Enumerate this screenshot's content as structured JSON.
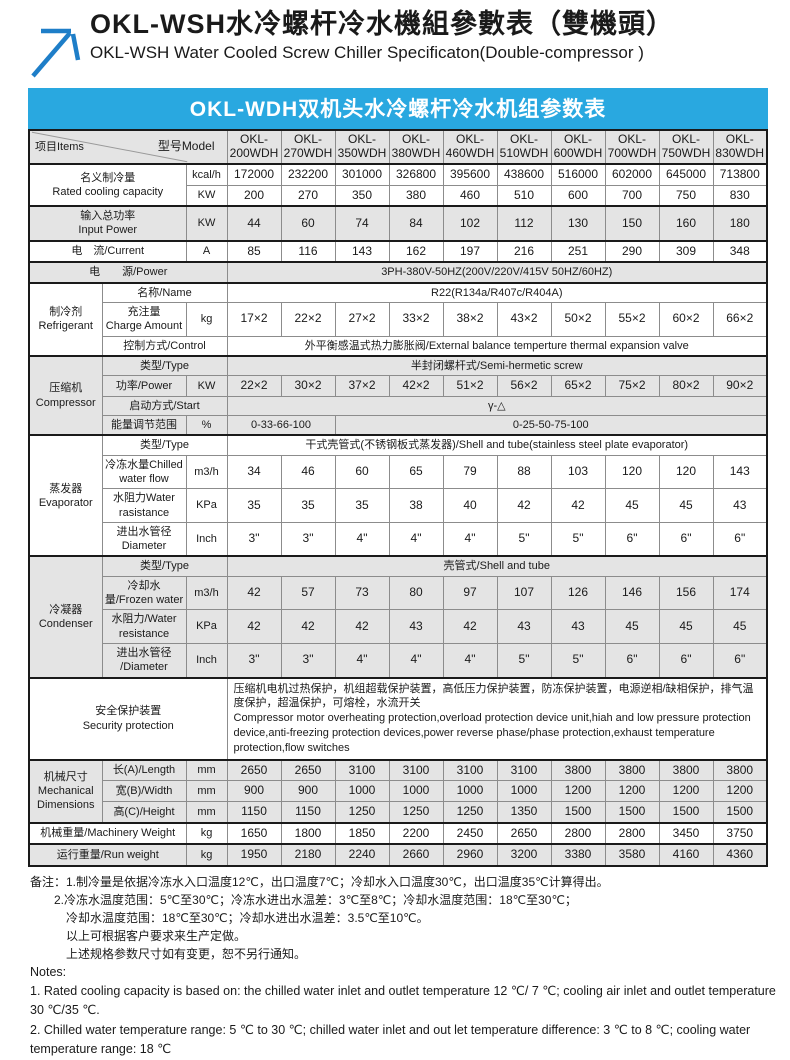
{
  "page_title": {
    "zh": "OKL-WSH水冷螺杆冷水機組參數表（雙機頭）",
    "en": "OKL-WSH Water Cooled Screw Chiller Specificaton(Double-compressor )"
  },
  "banner": {
    "title": "OKL-WDH双机头水冷螺杆冷水机组参数表"
  },
  "colors": {
    "banner_blue": "#29a8e0",
    "row_gray": "#e4e4e4",
    "arrow_blue": "#1e7ec8",
    "border_dark": "#1a1a1a"
  },
  "table": {
    "corner": {
      "items_label": "项目Items",
      "model_label": "型号Model"
    },
    "models": [
      "OKL-\n200WDH",
      "OKL-\n270WDH",
      "OKL-\n350WDH",
      "OKL-\n380WDH",
      "OKL-\n460WDH",
      "OKL-\n510WDH",
      "OKL-\n600WDH",
      "OKL-\n700WDH",
      "OKL-\n750WDH",
      "OKL-\n830WDH"
    ],
    "rows": [
      {
        "shade": false,
        "heavy": true,
        "cells": [
          {
            "t": "名义制冷量\nRated cooling capacity",
            "c": 2,
            "r": 2,
            "k": "label"
          },
          {
            "t": "kcal/h",
            "k": "unit"
          },
          {
            "t": "172000"
          },
          {
            "t": "232200"
          },
          {
            "t": "301000"
          },
          {
            "t": "326800"
          },
          {
            "t": "395600"
          },
          {
            "t": "438600"
          },
          {
            "t": "516000"
          },
          {
            "t": "602000"
          },
          {
            "t": "645000"
          },
          {
            "t": "713800"
          }
        ]
      },
      {
        "shade": false,
        "cells": [
          {
            "t": "KW",
            "k": "unit"
          },
          {
            "t": "200"
          },
          {
            "t": "270"
          },
          {
            "t": "350"
          },
          {
            "t": "380"
          },
          {
            "t": "460"
          },
          {
            "t": "510"
          },
          {
            "t": "600"
          },
          {
            "t": "700"
          },
          {
            "t": "750"
          },
          {
            "t": "830"
          }
        ]
      },
      {
        "shade": true,
        "heavy": true,
        "cells": [
          {
            "t": "输入总功率\nInput Power",
            "c": 2,
            "k": "label"
          },
          {
            "t": "KW",
            "k": "unit"
          },
          {
            "t": "44"
          },
          {
            "t": "60"
          },
          {
            "t": "74"
          },
          {
            "t": "84"
          },
          {
            "t": "102"
          },
          {
            "t": "112"
          },
          {
            "t": "130"
          },
          {
            "t": "150"
          },
          {
            "t": "160"
          },
          {
            "t": "180"
          }
        ]
      },
      {
        "shade": false,
        "heavy": true,
        "cells": [
          {
            "t": "电　流/Current",
            "c": 2,
            "k": "label"
          },
          {
            "t": "A",
            "k": "unit"
          },
          {
            "t": "85"
          },
          {
            "t": "116"
          },
          {
            "t": "143"
          },
          {
            "t": "162"
          },
          {
            "t": "197"
          },
          {
            "t": "216"
          },
          {
            "t": "251"
          },
          {
            "t": "290"
          },
          {
            "t": "309"
          },
          {
            "t": "348"
          }
        ]
      },
      {
        "shade": true,
        "heavy": true,
        "cells": [
          {
            "t": "电　　源/Power",
            "c": 3,
            "k": "label"
          },
          {
            "t": "3PH-380V-50HZ(200V/220V/415V 50HZ/60HZ)",
            "c": 10,
            "k": "span"
          }
        ]
      },
      {
        "shade": false,
        "heavy": true,
        "cells": [
          {
            "t": "制冷剂\nRefrigerant",
            "r": 3,
            "k": "group"
          },
          {
            "t": "名称/Name",
            "c": 2,
            "k": "label"
          },
          {
            "t": "R22(R134a/R407c/R404A)",
            "c": 10,
            "k": "span"
          }
        ]
      },
      {
        "shade": false,
        "cells": [
          {
            "t": "充注量\nCharge Amount",
            "k": "label"
          },
          {
            "t": "kg",
            "k": "unit"
          },
          {
            "t": "17×2"
          },
          {
            "t": "22×2"
          },
          {
            "t": "27×2"
          },
          {
            "t": "33×2"
          },
          {
            "t": "38×2"
          },
          {
            "t": "43×2"
          },
          {
            "t": "50×2"
          },
          {
            "t": "55×2"
          },
          {
            "t": "60×2"
          },
          {
            "t": "66×2"
          }
        ]
      },
      {
        "shade": false,
        "cells": [
          {
            "t": "控制方式/Control",
            "c": 2,
            "k": "label"
          },
          {
            "t": "外平衡感温式热力膨胀阀/External balance temperture thermal expansion valve",
            "c": 10,
            "k": "span"
          }
        ]
      },
      {
        "shade": true,
        "heavy": true,
        "cells": [
          {
            "t": "压缩机\nCompressor",
            "r": 4,
            "k": "group"
          },
          {
            "t": "类型/Type",
            "c": 2,
            "k": "label"
          },
          {
            "t": "半封闭螺杆式/Semi-hermetic screw",
            "c": 10,
            "k": "span"
          }
        ]
      },
      {
        "shade": true,
        "cells": [
          {
            "t": "功率/Power",
            "k": "label"
          },
          {
            "t": "KW",
            "k": "unit"
          },
          {
            "t": "22×2"
          },
          {
            "t": "30×2"
          },
          {
            "t": "37×2"
          },
          {
            "t": "42×2"
          },
          {
            "t": "51×2"
          },
          {
            "t": "56×2"
          },
          {
            "t": "65×2"
          },
          {
            "t": "75×2"
          },
          {
            "t": "80×2"
          },
          {
            "t": "90×2"
          }
        ]
      },
      {
        "shade": true,
        "cells": [
          {
            "t": "启动方式/Start",
            "c": 2,
            "k": "label"
          },
          {
            "t": "γ-△",
            "c": 10,
            "k": "span"
          }
        ]
      },
      {
        "shade": true,
        "cells": [
          {
            "t": "能量调节范围",
            "k": "label"
          },
          {
            "t": "%",
            "k": "unit"
          },
          {
            "t": "0-33-66-100",
            "c": 2,
            "k": "span"
          },
          {
            "t": "0-25-50-75-100",
            "c": 8,
            "k": "span"
          }
        ]
      },
      {
        "shade": false,
        "heavy": true,
        "cells": [
          {
            "t": "蒸发器\nEvaporator",
            "r": 4,
            "k": "group"
          },
          {
            "t": "类型/Type",
            "c": 2,
            "k": "label"
          },
          {
            "t": "干式壳管式(不锈钢板式蒸发器)/Shell and tube(stainless steel plate evaporator)",
            "c": 10,
            "k": "span"
          }
        ]
      },
      {
        "shade": false,
        "cells": [
          {
            "t": "冷冻水量Chilled water flow",
            "k": "label"
          },
          {
            "t": "m3/h",
            "k": "unit"
          },
          {
            "t": "34"
          },
          {
            "t": "46"
          },
          {
            "t": "60"
          },
          {
            "t": "65"
          },
          {
            "t": "79"
          },
          {
            "t": "88"
          },
          {
            "t": "103"
          },
          {
            "t": "120"
          },
          {
            "t": "120"
          },
          {
            "t": "143"
          }
        ]
      },
      {
        "shade": false,
        "cells": [
          {
            "t": "水阻力Water rasistance",
            "k": "label"
          },
          {
            "t": "KPa",
            "k": "unit"
          },
          {
            "t": "35"
          },
          {
            "t": "35"
          },
          {
            "t": "35"
          },
          {
            "t": "38"
          },
          {
            "t": "40"
          },
          {
            "t": "42"
          },
          {
            "t": "42"
          },
          {
            "t": "45"
          },
          {
            "t": "45"
          },
          {
            "t": "43"
          }
        ]
      },
      {
        "shade": false,
        "cells": [
          {
            "t": "进出水管径\nDiameter",
            "k": "label"
          },
          {
            "t": "Inch",
            "k": "unit"
          },
          {
            "t": "3\""
          },
          {
            "t": "3\""
          },
          {
            "t": "4\""
          },
          {
            "t": "4\""
          },
          {
            "t": "4\""
          },
          {
            "t": "5\""
          },
          {
            "t": "5\""
          },
          {
            "t": "6\""
          },
          {
            "t": "6\""
          },
          {
            "t": "6\""
          }
        ]
      },
      {
        "shade": true,
        "heavy": true,
        "cells": [
          {
            "t": "冷凝器\nCondenser",
            "r": 4,
            "k": "group"
          },
          {
            "t": "类型/Type",
            "c": 2,
            "k": "label"
          },
          {
            "t": "壳管式/Shell and tube",
            "c": 10,
            "k": "span"
          }
        ]
      },
      {
        "shade": true,
        "cells": [
          {
            "t": "冷却水量/Frozen water",
            "k": "label"
          },
          {
            "t": "m3/h",
            "k": "unit"
          },
          {
            "t": "42"
          },
          {
            "t": "57"
          },
          {
            "t": "73"
          },
          {
            "t": "80"
          },
          {
            "t": "97"
          },
          {
            "t": "107"
          },
          {
            "t": "126"
          },
          {
            "t": "146"
          },
          {
            "t": "156"
          },
          {
            "t": "174"
          }
        ]
      },
      {
        "shade": true,
        "cells": [
          {
            "t": "水阻力/Water resistance",
            "k": "label"
          },
          {
            "t": "KPa",
            "k": "unit"
          },
          {
            "t": "42"
          },
          {
            "t": "42"
          },
          {
            "t": "42"
          },
          {
            "t": "43"
          },
          {
            "t": "42"
          },
          {
            "t": "43"
          },
          {
            "t": "43"
          },
          {
            "t": "45"
          },
          {
            "t": "45"
          },
          {
            "t": "45"
          }
        ]
      },
      {
        "shade": true,
        "cells": [
          {
            "t": "进出水管径\n/Diameter",
            "k": "label"
          },
          {
            "t": "Inch",
            "k": "unit"
          },
          {
            "t": "3\""
          },
          {
            "t": "3\""
          },
          {
            "t": "4\""
          },
          {
            "t": "4\""
          },
          {
            "t": "4\""
          },
          {
            "t": "5\""
          },
          {
            "t": "5\""
          },
          {
            "t": "6\""
          },
          {
            "t": "6\""
          },
          {
            "t": "6\""
          }
        ]
      },
      {
        "shade": false,
        "heavy": true,
        "cells": [
          {
            "t": "安全保护装置\nSecurity protection",
            "c": 3,
            "k": "label"
          },
          {
            "t": "压缩机电机过热保护，机组超载保护装置，高低压力保护装置，防冻保护装置，电源逆相/缺相保护，排气温度保护，超温保护，可熔栓，水流开关\nCompressor motor overheating protection,overload protection device unit,hiah and low pressure protection device,anti-freezing protection devices,power reverse phase/phase protection,exhaust temperature protection,flow switches",
            "c": 10,
            "k": "long"
          }
        ]
      },
      {
        "shade": true,
        "heavy": true,
        "cells": [
          {
            "t": "机械尺寸\nMechanical\nDimensions",
            "r": 3,
            "k": "group"
          },
          {
            "t": "长(A)/Length",
            "k": "label"
          },
          {
            "t": "mm",
            "k": "unit"
          },
          {
            "t": "2650"
          },
          {
            "t": "2650"
          },
          {
            "t": "3100"
          },
          {
            "t": "3100"
          },
          {
            "t": "3100"
          },
          {
            "t": "3100"
          },
          {
            "t": "3800"
          },
          {
            "t": "3800"
          },
          {
            "t": "3800"
          },
          {
            "t": "3800"
          }
        ]
      },
      {
        "shade": true,
        "cells": [
          {
            "t": "宽(B)/Width",
            "k": "label"
          },
          {
            "t": "mm",
            "k": "unit"
          },
          {
            "t": "900"
          },
          {
            "t": "900"
          },
          {
            "t": "1000"
          },
          {
            "t": "1000"
          },
          {
            "t": "1000"
          },
          {
            "t": "1000"
          },
          {
            "t": "1200"
          },
          {
            "t": "1200"
          },
          {
            "t": "1200"
          },
          {
            "t": "1200"
          }
        ]
      },
      {
        "shade": true,
        "cells": [
          {
            "t": "高(C)/Height",
            "k": "label"
          },
          {
            "t": "mm",
            "k": "unit"
          },
          {
            "t": "1150"
          },
          {
            "t": "1150"
          },
          {
            "t": "1250"
          },
          {
            "t": "1250"
          },
          {
            "t": "1250"
          },
          {
            "t": "1350"
          },
          {
            "t": "1500"
          },
          {
            "t": "1500"
          },
          {
            "t": "1500"
          },
          {
            "t": "1500"
          }
        ]
      },
      {
        "shade": false,
        "heavy": true,
        "cells": [
          {
            "t": "机械重量/Machinery Weight",
            "c": 2,
            "k": "label"
          },
          {
            "t": "kg",
            "k": "unit"
          },
          {
            "t": "1650"
          },
          {
            "t": "1800"
          },
          {
            "t": "1850"
          },
          {
            "t": "2200"
          },
          {
            "t": "2450"
          },
          {
            "t": "2650"
          },
          {
            "t": "2800"
          },
          {
            "t": "2800"
          },
          {
            "t": "3450"
          },
          {
            "t": "3750"
          }
        ]
      },
      {
        "shade": true,
        "heavy": true,
        "cells": [
          {
            "t": "运行重量/Run weight",
            "c": 2,
            "k": "label"
          },
          {
            "t": "kg",
            "k": "unit"
          },
          {
            "t": "1950"
          },
          {
            "t": "2180"
          },
          {
            "t": "2240"
          },
          {
            "t": "2660"
          },
          {
            "t": "2960"
          },
          {
            "t": "3200"
          },
          {
            "t": "3380"
          },
          {
            "t": "3580"
          },
          {
            "t": "4160"
          },
          {
            "t": "4360"
          }
        ]
      }
    ]
  },
  "notes": {
    "zh": [
      "备注：1.制冷量是依据冷冻水入口温度12℃，出口温度7℃；冷却水入口温度30℃，出口温度35℃计算得出。",
      "　　2.冷冻水温度范围：5℃至30℃；冷冻水进出水温差：3℃至8℃；冷却水温度范围：18℃至30℃；",
      "　　　冷却水温度范围：18℃至30℃；冷却水进出水温差：3.5℃至10℃。",
      "　　　以上可根据客户要求来生产定做。",
      "　　　上述规格参数尺寸如有变更，恕不另行通知。"
    ],
    "en": [
      "Notes:",
      "1. Rated cooling capacity is based on: the chilled water inlet and outlet temperature 12 ℃/ 7 ℃; cooling air inlet and outlet temperature 30 ℃/35 ℃.",
      "2. Chilled water temperature range: 5 ℃ to 30 ℃; chilled water inlet and out let temperature difference: 3 ℃ to 8 ℃; cooling water temperature range: 18 ℃"
    ]
  }
}
